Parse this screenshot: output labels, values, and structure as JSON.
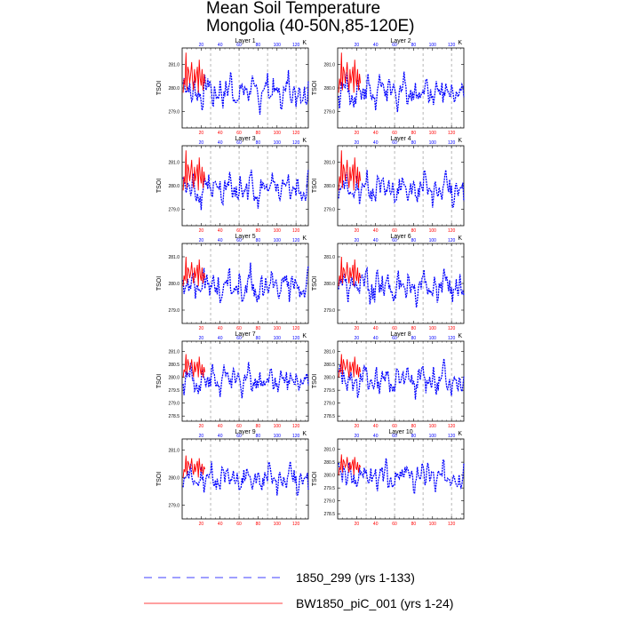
{
  "title_line1": "Mean Soil Temperature",
  "title_line2": "Mongolia (40-50N,85-120E)",
  "units": "K",
  "y_label": "TSOI",
  "series_colors": {
    "control": "#0000ff",
    "experiment": "#ff0000"
  },
  "legend": [
    {
      "label": "1850_299 (yrs 1-133)",
      "color": "#0000ff",
      "style": "dashed"
    },
    {
      "label": "BW1850_piC_001 (yrs 1-24)",
      "color": "#ff0000",
      "style": "solid"
    }
  ],
  "chart_data": [
    {
      "type": "line",
      "panel": "Layer 1",
      "ylim": [
        278.3,
        281.7
      ],
      "yticks": [
        279.0,
        280.0,
        281.0
      ],
      "xlim": [
        0,
        133
      ],
      "xticks": [
        20,
        40,
        60,
        80,
        100,
        120
      ],
      "grid_x": [
        30,
        60,
        90,
        120
      ],
      "series": [
        {
          "name": "1850_299 (yrs 1-133)",
          "years": "1-133",
          "base": 279.85,
          "amp": 0.55
        },
        {
          "name": "BW1850_piC_001 (yrs 1-24)",
          "years": "1-24",
          "values": [
            279.8,
            280.4,
            280.1,
            281.5,
            279.9,
            280.9,
            280.7,
            280.2,
            280.6,
            281.1,
            280.3,
            279.9,
            280.8,
            280.2,
            280.5,
            280.9,
            279.8,
            281.2,
            280.4,
            280.1,
            280.8,
            279.9,
            280.6,
            280.2
          ]
        }
      ]
    },
    {
      "type": "line",
      "panel": "Layer 2",
      "ylim": [
        278.3,
        281.7
      ],
      "yticks": [
        279.0,
        280.0,
        281.0
      ],
      "xlim": [
        0,
        133
      ],
      "xticks": [
        20,
        40,
        60,
        80,
        100,
        120
      ],
      "grid_x": [
        30,
        60,
        90,
        120
      ],
      "series": [
        {
          "name": "1850_299 (yrs 1-133)",
          "years": "1-133",
          "base": 279.85,
          "amp": 0.55
        },
        {
          "name": "BW1850_piC_001 (yrs 1-24)",
          "years": "1-24",
          "values": [
            279.8,
            280.4,
            280.1,
            281.5,
            279.9,
            280.9,
            280.7,
            280.2,
            280.6,
            281.1,
            280.3,
            279.9,
            280.8,
            280.2,
            280.5,
            280.9,
            279.8,
            281.2,
            280.4,
            280.1,
            280.8,
            279.9,
            280.6,
            280.2
          ]
        }
      ]
    },
    {
      "type": "line",
      "panel": "Layer 3",
      "ylim": [
        278.3,
        281.7
      ],
      "yticks": [
        279.0,
        280.0,
        281.0
      ],
      "xlim": [
        0,
        133
      ],
      "xticks": [
        20,
        40,
        60,
        80,
        100,
        120
      ],
      "grid_x": [
        30,
        60,
        90,
        120
      ],
      "series": [
        {
          "name": "1850_299 (yrs 1-133)",
          "years": "1-133",
          "base": 279.85,
          "amp": 0.55
        },
        {
          "name": "BW1850_piC_001 (yrs 1-24)",
          "years": "1-24",
          "values": [
            279.8,
            280.4,
            280.1,
            281.5,
            279.9,
            280.9,
            280.7,
            280.2,
            280.6,
            281.1,
            280.3,
            279.9,
            280.8,
            280.2,
            280.5,
            280.9,
            279.8,
            281.2,
            280.4,
            280.1,
            280.8,
            279.9,
            280.6,
            280.2
          ]
        }
      ]
    },
    {
      "type": "line",
      "panel": "Layer 4",
      "ylim": [
        278.3,
        281.7
      ],
      "yticks": [
        279.0,
        280.0,
        281.0
      ],
      "xlim": [
        0,
        133
      ],
      "xticks": [
        20,
        40,
        60,
        80,
        100,
        120
      ],
      "grid_x": [
        30,
        60,
        90,
        120
      ],
      "series": [
        {
          "name": "1850_299 (yrs 1-133)",
          "years": "1-133",
          "base": 279.85,
          "amp": 0.55
        },
        {
          "name": "BW1850_piC_001 (yrs 1-24)",
          "years": "1-24",
          "values": [
            279.8,
            280.4,
            280.1,
            281.5,
            279.9,
            280.9,
            280.7,
            280.2,
            280.6,
            281.1,
            280.3,
            279.9,
            280.8,
            280.2,
            280.5,
            280.9,
            279.8,
            281.2,
            280.4,
            280.1,
            280.8,
            279.9,
            280.6,
            280.2
          ]
        }
      ]
    },
    {
      "type": "line",
      "panel": "Layer 5",
      "ylim": [
        278.5,
        281.5
      ],
      "yticks": [
        279.0,
        280.0,
        281.0
      ],
      "xlim": [
        0,
        133
      ],
      "xticks": [
        20,
        40,
        60,
        80,
        100,
        120
      ],
      "grid_x": [
        30,
        60,
        90,
        120
      ],
      "series": [
        {
          "name": "1850_299 (yrs 1-133)",
          "years": "1-133",
          "base": 279.9,
          "amp": 0.5
        },
        {
          "name": "BW1850_piC_001 (yrs 1-24)",
          "years": "1-24",
          "values": [
            279.9,
            280.3,
            280.1,
            281.0,
            280.0,
            280.6,
            280.5,
            280.2,
            280.4,
            280.8,
            280.3,
            280.0,
            280.6,
            280.2,
            280.4,
            280.7,
            279.9,
            280.9,
            280.3,
            280.1,
            280.6,
            280.0,
            280.4,
            280.2
          ]
        }
      ]
    },
    {
      "type": "line",
      "panel": "Layer 6",
      "ylim": [
        278.5,
        281.5
      ],
      "yticks": [
        279.0,
        280.0,
        281.0
      ],
      "xlim": [
        0,
        133
      ],
      "xticks": [
        20,
        40,
        60,
        80,
        100,
        120
      ],
      "grid_x": [
        30,
        60,
        90,
        120
      ],
      "series": [
        {
          "name": "1850_299 (yrs 1-133)",
          "years": "1-133",
          "base": 279.9,
          "amp": 0.5
        },
        {
          "name": "BW1850_piC_001 (yrs 1-24)",
          "years": "1-24",
          "values": [
            279.9,
            280.3,
            280.1,
            281.0,
            280.0,
            280.6,
            280.5,
            280.2,
            280.4,
            280.8,
            280.3,
            280.0,
            280.6,
            280.2,
            280.4,
            280.7,
            279.9,
            280.9,
            280.3,
            280.1,
            280.6,
            280.0,
            280.4,
            280.2
          ]
        }
      ]
    },
    {
      "type": "line",
      "panel": "Layer 7",
      "ylim": [
        278.3,
        281.4
      ],
      "yticks": [
        278.5,
        279.0,
        279.5,
        280.0,
        280.5,
        281.0
      ],
      "xlim": [
        0,
        133
      ],
      "xticks": [
        20,
        40,
        60,
        80,
        100,
        120
      ],
      "grid_x": [
        30,
        60,
        90,
        120
      ],
      "series": [
        {
          "name": "1850_299 (yrs 1-133)",
          "years": "1-133",
          "base": 279.9,
          "amp": 0.45
        },
        {
          "name": "BW1850_piC_001 (yrs 1-24)",
          "years": "1-24",
          "values": [
            280.0,
            280.3,
            280.2,
            280.9,
            280.1,
            280.7,
            280.5,
            280.3,
            280.4,
            280.7,
            280.3,
            280.0,
            280.6,
            280.2,
            280.4,
            280.6,
            280.0,
            280.8,
            280.3,
            280.1,
            280.5,
            280.0,
            280.4,
            280.2
          ]
        }
      ]
    },
    {
      "type": "line",
      "panel": "Layer 8",
      "ylim": [
        278.3,
        281.4
      ],
      "yticks": [
        278.5,
        279.0,
        279.5,
        280.0,
        280.5,
        281.0
      ],
      "xlim": [
        0,
        133
      ],
      "xticks": [
        20,
        40,
        60,
        80,
        100,
        120
      ],
      "grid_x": [
        30,
        60,
        90,
        120
      ],
      "series": [
        {
          "name": "1850_299 (yrs 1-133)",
          "years": "1-133",
          "base": 279.9,
          "amp": 0.45
        },
        {
          "name": "BW1850_piC_001 (yrs 1-24)",
          "years": "1-24",
          "values": [
            280.0,
            280.3,
            280.2,
            280.9,
            280.1,
            280.7,
            280.5,
            280.3,
            280.4,
            280.7,
            280.3,
            280.0,
            280.6,
            280.2,
            280.4,
            280.6,
            280.0,
            280.8,
            280.3,
            280.1,
            280.5,
            280.0,
            280.4,
            280.2
          ]
        }
      ]
    },
    {
      "type": "line",
      "panel": "Layer 9",
      "ylim": [
        278.5,
        281.4
      ],
      "yticks": [
        279.0,
        280.0,
        281.0
      ],
      "xlim": [
        0,
        133
      ],
      "xticks": [
        20,
        40,
        60,
        80,
        100,
        120
      ],
      "grid_x": [
        30,
        60,
        90,
        120
      ],
      "series": [
        {
          "name": "1850_299 (yrs 1-133)",
          "years": "1-133",
          "base": 279.95,
          "amp": 0.42
        },
        {
          "name": "BW1850_piC_001 (yrs 1-24)",
          "years": "1-24",
          "values": [
            280.0,
            280.3,
            280.2,
            280.8,
            280.1,
            280.6,
            280.5,
            280.3,
            280.4,
            280.7,
            280.3,
            280.1,
            280.5,
            280.2,
            280.4,
            280.6,
            280.0,
            280.7,
            280.3,
            280.2,
            280.5,
            280.1,
            280.4,
            280.3
          ]
        }
      ]
    },
    {
      "type": "line",
      "panel": "Layer 10",
      "ylim": [
        278.3,
        281.4
      ],
      "yticks": [
        278.5,
        279.0,
        279.5,
        280.0,
        280.5,
        281.0
      ],
      "xlim": [
        0,
        133
      ],
      "xticks": [
        20,
        40,
        60,
        80,
        100,
        120
      ],
      "grid_x": [
        30,
        60,
        90,
        120
      ],
      "series": [
        {
          "name": "1850_299 (yrs 1-133)",
          "years": "1-133",
          "base": 279.95,
          "amp": 0.42
        },
        {
          "name": "BW1850_piC_001 (yrs 1-24)",
          "years": "1-24",
          "values": [
            280.0,
            280.3,
            280.2,
            280.8,
            280.1,
            280.6,
            280.5,
            280.3,
            280.4,
            280.7,
            280.3,
            280.1,
            280.5,
            280.2,
            280.4,
            280.6,
            280.0,
            280.7,
            280.3,
            280.2,
            280.5,
            280.1,
            280.4,
            280.3
          ]
        }
      ]
    }
  ]
}
